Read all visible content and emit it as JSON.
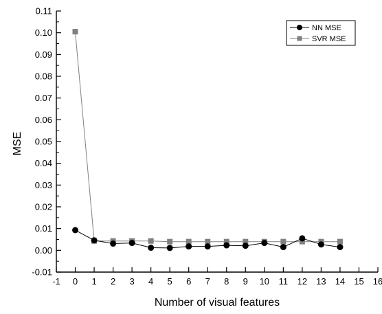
{
  "chart_data": {
    "type": "line",
    "title": "",
    "xlabel": "Number of visual features",
    "ylabel": "MSE",
    "xlim": [
      -1,
      16
    ],
    "ylim": [
      -0.01,
      0.11
    ],
    "x_ticks": [
      "-1",
      "0",
      "1",
      "2",
      "3",
      "4",
      "5",
      "6",
      "7",
      "8",
      "9",
      "10",
      "11",
      "12",
      "13",
      "14",
      "15",
      "16"
    ],
    "y_ticks": [
      "-0.01",
      "0.00",
      "0.01",
      "0.02",
      "0.03",
      "0.04",
      "0.05",
      "0.06",
      "0.07",
      "0.08",
      "0.09",
      "0.10",
      "0.11"
    ],
    "grid": false,
    "legend_position": "top-right",
    "x": [
      0,
      1,
      2,
      3,
      4,
      5,
      6,
      7,
      8,
      9,
      10,
      11,
      12,
      13,
      14
    ],
    "series": [
      {
        "name": "NN MSE",
        "marker": "circle",
        "color": "#000000",
        "values": [
          0.0093,
          0.0046,
          0.0031,
          0.0034,
          0.0012,
          0.0011,
          0.0018,
          0.0018,
          0.0023,
          0.0021,
          0.0034,
          0.0015,
          0.0055,
          0.0027,
          0.0015
        ]
      },
      {
        "name": "SVR MSE",
        "marker": "square",
        "color": "#808080",
        "values": [
          0.1005,
          0.0043,
          0.0043,
          0.0043,
          0.0043,
          0.004,
          0.004,
          0.004,
          0.004,
          0.004,
          0.004,
          0.004,
          0.004,
          0.004,
          0.004
        ]
      }
    ]
  }
}
